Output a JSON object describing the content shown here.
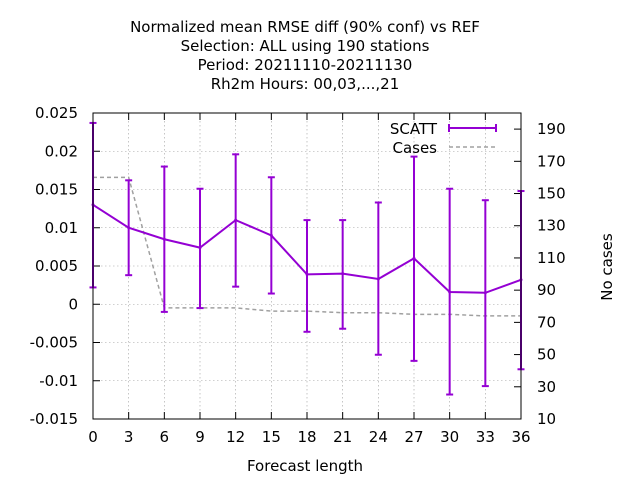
{
  "chart_data": {
    "type": "line",
    "title_lines": [
      "Normalized mean RMSE diff (90% conf) vs REF",
      "Selection: ALL using   190 stations",
      "Period: 20211110-20211130",
      "Rh2m   Hours:  00,03,...,21"
    ],
    "xlabel": "Forecast length",
    "ylabel": "",
    "y2label": "No cases",
    "x": [
      0,
      3,
      6,
      9,
      12,
      15,
      18,
      21,
      24,
      27,
      30,
      33,
      36
    ],
    "xlim": [
      0,
      36
    ],
    "ylim": [
      -0.015,
      0.025
    ],
    "y2lim": [
      10,
      200
    ],
    "xticks": [
      "0",
      "3",
      "6",
      "9",
      "12",
      "15",
      "18",
      "21",
      "24",
      "27",
      "30",
      "33",
      "36"
    ],
    "yticks": [
      "0.025",
      "0.02",
      "0.015",
      "0.01",
      "0.005",
      "0",
      "-0.005",
      "-0.01",
      "-0.015"
    ],
    "yticks_values": [
      0.025,
      0.02,
      0.015,
      0.01,
      0.005,
      0,
      -0.005,
      -0.01,
      -0.015
    ],
    "y2ticks": [
      "190",
      "170",
      "150",
      "130",
      "110",
      "90",
      "70",
      "50",
      "30",
      "10"
    ],
    "y2ticks_values": [
      190,
      170,
      150,
      130,
      110,
      90,
      70,
      50,
      30,
      10
    ],
    "grid": true,
    "legend_position": "top-right",
    "series": [
      {
        "name": "SCATT",
        "axis": "left",
        "color": "#9400d3",
        "values": [
          0.013,
          0.01,
          0.0085,
          0.0074,
          0.011,
          0.009,
          0.0039,
          0.004,
          0.0033,
          0.006,
          0.0016,
          0.0015,
          0.0032
        ],
        "err_low": [
          0.0022,
          0.0038,
          -0.001,
          -0.0005,
          0.0023,
          0.0014,
          -0.0036,
          -0.0032,
          -0.0066,
          -0.0074,
          -0.0118,
          -0.0107,
          -0.0085
        ],
        "err_high": [
          0.0237,
          0.0162,
          0.018,
          0.0151,
          0.0196,
          0.0166,
          0.011,
          0.011,
          0.0133,
          0.0193,
          0.0151,
          0.0136,
          0.0148
        ]
      },
      {
        "name": "Cases",
        "axis": "right",
        "color": "#a0a0a0",
        "values": [
          160,
          160,
          79,
          79,
          79,
          77,
          77,
          76,
          76,
          75,
          75,
          74,
          74
        ]
      }
    ]
  }
}
